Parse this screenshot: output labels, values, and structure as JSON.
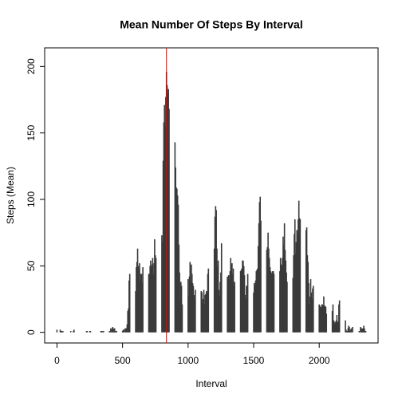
{
  "chart_data": {
    "type": "bar",
    "title": "Mean Number Of Steps By Interval",
    "xlabel": "Interval",
    "ylabel": "Steps (Mean)",
    "x": [
      0,
      5,
      10,
      15,
      20,
      25,
      30,
      35,
      40,
      45,
      50,
      55,
      100,
      105,
      110,
      115,
      120,
      125,
      130,
      135,
      140,
      145,
      150,
      155,
      200,
      205,
      210,
      215,
      220,
      225,
      230,
      235,
      240,
      245,
      250,
      255,
      300,
      305,
      310,
      315,
      320,
      325,
      330,
      335,
      340,
      345,
      350,
      355,
      400,
      405,
      410,
      415,
      420,
      425,
      430,
      435,
      440,
      445,
      450,
      455,
      500,
      505,
      510,
      515,
      520,
      525,
      530,
      535,
      540,
      545,
      550,
      555,
      600,
      605,
      610,
      615,
      620,
      625,
      630,
      635,
      640,
      645,
      650,
      655,
      700,
      705,
      710,
      715,
      720,
      725,
      730,
      735,
      740,
      745,
      750,
      755,
      800,
      805,
      810,
      815,
      820,
      825,
      830,
      835,
      840,
      845,
      850,
      855,
      900,
      905,
      910,
      915,
      920,
      925,
      930,
      935,
      940,
      945,
      950,
      955,
      1000,
      1005,
      1010,
      1015,
      1020,
      1025,
      1030,
      1035,
      1040,
      1045,
      1050,
      1055,
      1100,
      1105,
      1110,
      1115,
      1120,
      1125,
      1130,
      1135,
      1140,
      1145,
      1150,
      1155,
      1200,
      1205,
      1210,
      1215,
      1220,
      1225,
      1230,
      1235,
      1240,
      1245,
      1250,
      1255,
      1300,
      1305,
      1310,
      1315,
      1320,
      1325,
      1330,
      1335,
      1340,
      1345,
      1350,
      1355,
      1400,
      1405,
      1410,
      1415,
      1420,
      1425,
      1430,
      1435,
      1440,
      1445,
      1450,
      1455,
      1500,
      1505,
      1510,
      1515,
      1520,
      1525,
      1530,
      1535,
      1540,
      1545,
      1550,
      1555,
      1600,
      1605,
      1610,
      1615,
      1620,
      1625,
      1630,
      1635,
      1640,
      1645,
      1650,
      1655,
      1700,
      1705,
      1710,
      1715,
      1720,
      1725,
      1730,
      1735,
      1740,
      1745,
      1750,
      1755,
      1800,
      1805,
      1810,
      1815,
      1820,
      1825,
      1830,
      1835,
      1840,
      1845,
      1850,
      1855,
      1900,
      1905,
      1910,
      1915,
      1920,
      1925,
      1930,
      1935,
      1940,
      1945,
      1950,
      1955,
      2000,
      2005,
      2010,
      2015,
      2020,
      2025,
      2030,
      2035,
      2040,
      2045,
      2050,
      2055,
      2100,
      2105,
      2110,
      2115,
      2120,
      2125,
      2130,
      2135,
      2140,
      2145,
      2150,
      2155,
      2200,
      2205,
      2210,
      2215,
      2220,
      2225,
      2230,
      2235,
      2240,
      2245,
      2250,
      2255,
      2300,
      2305,
      2310,
      2315,
      2320,
      2325,
      2330,
      2335,
      2340,
      2345,
      2350,
      2355
    ],
    "values": [
      2,
      0,
      0,
      0,
      0,
      2,
      1,
      1,
      0,
      1,
      0,
      0,
      0,
      1,
      0,
      0,
      0,
      1,
      2,
      0,
      0,
      0,
      0,
      0,
      0,
      0,
      0,
      0,
      0,
      1,
      1,
      0,
      0,
      0,
      1,
      1,
      0,
      0,
      0,
      0,
      0,
      0,
      0,
      1,
      1,
      0,
      1,
      1,
      1,
      0,
      3,
      1,
      3,
      4,
      1,
      3,
      3,
      1,
      0,
      1,
      1,
      2,
      2,
      0,
      3,
      3,
      3,
      6,
      16,
      18,
      39,
      44,
      31,
      49,
      53,
      63,
      50,
      47,
      52,
      39,
      44,
      44,
      37,
      49,
      44,
      44,
      50,
      54,
      49,
      51,
      56,
      44,
      52,
      70,
      58,
      56,
      73,
      68,
      129,
      158,
      171,
      155,
      177,
      196,
      186,
      180,
      183,
      168,
      143,
      124,
      109,
      108,
      103,
      96,
      66,
      45,
      24,
      38,
      35,
      21,
      40,
      27,
      42,
      53,
      38,
      51,
      44,
      37,
      35,
      28,
      25,
      32,
      31,
      30,
      22,
      25,
      32,
      21,
      28,
      29,
      31,
      30,
      44,
      48,
      63,
      87,
      95,
      92,
      63,
      50,
      54,
      32,
      27,
      38,
      45,
      67,
      42,
      40,
      43,
      40,
      46,
      56,
      51,
      52,
      44,
      48,
      35,
      38,
      46,
      47,
      48,
      54,
      54,
      50,
      43,
      28,
      25,
      35,
      35,
      44,
      30,
      37,
      35,
      39,
      46,
      47,
      48,
      65,
      82,
      98,
      102,
      84,
      62,
      64,
      75,
      63,
      56,
      49,
      46,
      44,
      45,
      46,
      46,
      44,
      46,
      56,
      51,
      50,
      56,
      72,
      66,
      82,
      62,
      54,
      45,
      38,
      41,
      58,
      74,
      85,
      59,
      68,
      77,
      74,
      85,
      99,
      86,
      85,
      77,
      79,
      58,
      53,
      37,
      21,
      27,
      40,
      30,
      25,
      33,
      35,
      21,
      20,
      19,
      19,
      21,
      21,
      20,
      27,
      20,
      20,
      19,
      14,
      16,
      21,
      9,
      6,
      8,
      7,
      9,
      13,
      8,
      8,
      21,
      24,
      9,
      2,
      1,
      1,
      3,
      5,
      4,
      1,
      2,
      3,
      0,
      4,
      0,
      1,
      0,
      4,
      3,
      3,
      2,
      3,
      5,
      3,
      1,
      1
    ],
    "color": "#3a3a3a",
    "vline": 835,
    "vline_color": "#cc1111",
    "xlim": [
      -94,
      2449
    ],
    "xticks": [
      0,
      500,
      1000,
      1500,
      2000
    ],
    "ylim": [
      -8,
      214
    ],
    "yticks": [
      0,
      50,
      100,
      150,
      200
    ]
  }
}
